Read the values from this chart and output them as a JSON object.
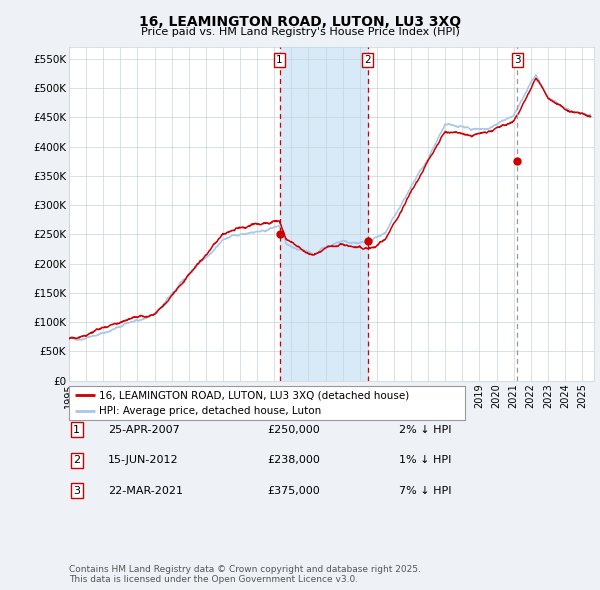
{
  "title": "16, LEAMINGTON ROAD, LUTON, LU3 3XQ",
  "subtitle": "Price paid vs. HM Land Registry's House Price Index (HPI)",
  "ylabel_ticks": [
    "£0",
    "£50K",
    "£100K",
    "£150K",
    "£200K",
    "£250K",
    "£300K",
    "£350K",
    "£400K",
    "£450K",
    "£500K",
    "£550K"
  ],
  "ytick_values": [
    0,
    50000,
    100000,
    150000,
    200000,
    250000,
    300000,
    350000,
    400000,
    450000,
    500000,
    550000
  ],
  "ylim": [
    0,
    570000
  ],
  "xlim_start": 1995.0,
  "xlim_end": 2025.7,
  "hpi_color": "#a8c8e8",
  "price_color": "#cc0000",
  "shade_color": "#d8eaf8",
  "background_color": "#eef2f6",
  "legend_label_price": "16, LEAMINGTON ROAD, LUTON, LU3 3XQ (detached house)",
  "legend_label_hpi": "HPI: Average price, detached house, Luton",
  "transactions": [
    {
      "num": 1,
      "date": "25-APR-2007",
      "price": "£250,000",
      "pct": "2% ↓ HPI",
      "year": 2007.31
    },
    {
      "num": 2,
      "date": "15-JUN-2012",
      "price": "£238,000",
      "pct": "1% ↓ HPI",
      "year": 2012.46
    },
    {
      "num": 3,
      "date": "22-MAR-2021",
      "price": "£375,000",
      "pct": "7% ↓ HPI",
      "year": 2021.22
    }
  ],
  "footer": "Contains HM Land Registry data © Crown copyright and database right 2025.\nThis data is licensed under the Open Government Licence v3.0.",
  "xtick_years": [
    1995,
    1996,
    1997,
    1998,
    1999,
    2000,
    2001,
    2002,
    2003,
    2004,
    2005,
    2006,
    2007,
    2008,
    2009,
    2010,
    2011,
    2012,
    2013,
    2014,
    2015,
    2016,
    2017,
    2018,
    2019,
    2020,
    2021,
    2022,
    2023,
    2024,
    2025
  ]
}
